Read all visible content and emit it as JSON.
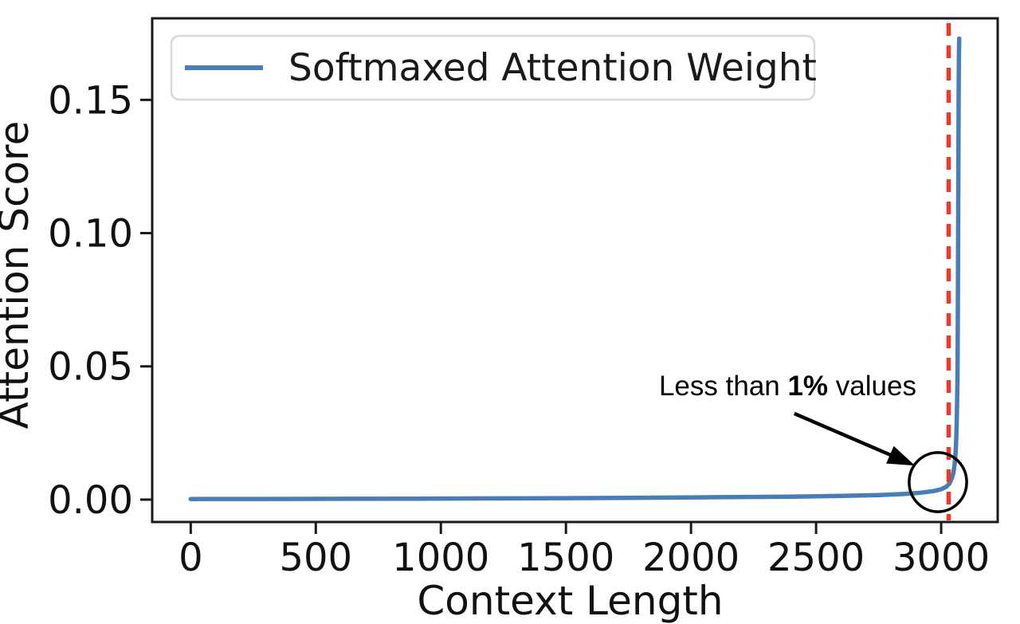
{
  "chart_data": {
    "type": "line",
    "title": "",
    "xlabel": "Context Length",
    "ylabel": "Attention Score",
    "xlim": [
      -154,
      3226
    ],
    "ylim": [
      -0.0084,
      0.1806
    ],
    "grid": false,
    "x_ticks": [
      0,
      500,
      1000,
      1500,
      2000,
      2500,
      3000
    ],
    "y_ticks": [
      0,
      0.05,
      0.1,
      0.15
    ],
    "y_tick_labels": [
      "0.00",
      "0.05",
      "0.10",
      "0.15"
    ],
    "legend": {
      "position": "upper left",
      "entries": [
        {
          "label": "Softmaxed Attention Weight",
          "color": "#4a7db6"
        }
      ]
    },
    "series": [
      {
        "name": "Softmaxed Attention Weight",
        "color": "#4a7db6",
        "points": [
          [
            0,
            0.0002
          ],
          [
            300,
            0.00025
          ],
          [
            600,
            0.0003
          ],
          [
            900,
            0.00035
          ],
          [
            1200,
            0.00045
          ],
          [
            1500,
            0.00055
          ],
          [
            1800,
            0.0007
          ],
          [
            2100,
            0.0009
          ],
          [
            2400,
            0.0011
          ],
          [
            2600,
            0.0014
          ],
          [
            2750,
            0.0017
          ],
          [
            2850,
            0.0021
          ],
          [
            2920,
            0.0026
          ],
          [
            2970,
            0.0032
          ],
          [
            3000,
            0.0039
          ],
          [
            3020,
            0.0048
          ],
          [
            3033,
            0.006
          ],
          [
            3042,
            0.0078
          ],
          [
            3049,
            0.01
          ],
          [
            3054,
            0.0133
          ],
          [
            3058,
            0.018
          ],
          [
            3061,
            0.0245
          ],
          [
            3063,
            0.032
          ],
          [
            3065,
            0.044
          ],
          [
            3066,
            0.058
          ],
          [
            3067,
            0.078
          ],
          [
            3068,
            0.102
          ],
          [
            3069,
            0.128
          ],
          [
            3070,
            0.151
          ],
          [
            3071,
            0.165
          ],
          [
            3072,
            0.173
          ]
        ]
      }
    ],
    "vline": {
      "x": 3030,
      "color": "#e93a2b",
      "style": "dashed"
    },
    "annotation": {
      "text_plain": "Less than ",
      "text_bold": "1%",
      "text_tail": " values",
      "text_anchor_xy": [
        1872,
        0.03915
      ],
      "arrow_from_xy": [
        2413,
        0.0323
      ],
      "arrow_to_xy": [
        2895,
        0.0128
      ],
      "circle_center_xy": [
        2987,
        0.00655
      ],
      "circle_rx": 115,
      "circle_ry": 0.0111,
      "color": "#000000"
    },
    "colors": {
      "axis": "#1a1a1a",
      "legend_border": "#d8d8d8",
      "background": "#ffffff"
    }
  }
}
